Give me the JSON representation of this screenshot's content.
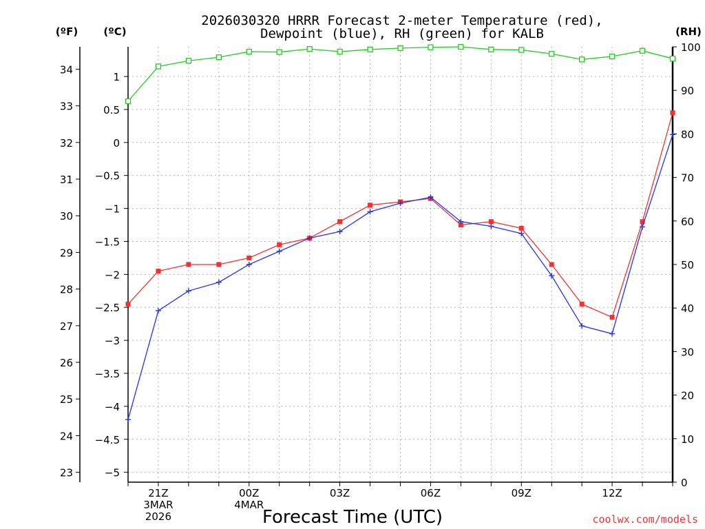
{
  "chart_data": {
    "type": "line",
    "title_lines": [
      "2026030320 HRRR Forecast 2-meter Temperature (red),",
      "Dewpoint (blue), RH (green) for KALB"
    ],
    "xlabel": "Forecast Time (UTC)",
    "credit": "coolwx.com/models",
    "units": {
      "fahrenheit": "(ºF)",
      "celsius": "(ºC)",
      "rh": "(RH)"
    },
    "x_hours": [
      0,
      1,
      2,
      3,
      4,
      5,
      6,
      7,
      8,
      9,
      10,
      11,
      12,
      13,
      14,
      15,
      16,
      17,
      18
    ],
    "x_ticks": [
      {
        "hour": 1,
        "lines": [
          "21Z",
          "3MAR",
          "2026"
        ]
      },
      {
        "hour": 4,
        "lines": [
          "00Z",
          "4MAR"
        ]
      },
      {
        "hour": 7,
        "lines": [
          "03Z"
        ]
      },
      {
        "hour": 10,
        "lines": [
          "06Z"
        ]
      },
      {
        "hour": 13,
        "lines": [
          "09Z"
        ]
      },
      {
        "hour": 16,
        "lines": [
          "12Z"
        ]
      }
    ],
    "celsius_axis": {
      "min": -5.15,
      "max": 1.45,
      "ticks": [
        -5,
        -4.5,
        -4,
        -3.5,
        -3,
        -2.5,
        -2,
        -1.5,
        -1,
        -0.5,
        0,
        0.5,
        1
      ]
    },
    "fahrenheit_axis": {
      "min": 22.73,
      "max": 34.61,
      "ticks": [
        23,
        24,
        25,
        26,
        27,
        28,
        29,
        30,
        31,
        32,
        33,
        34
      ]
    },
    "rh_axis": {
      "min": 0,
      "max": 100,
      "ticks": [
        0,
        10,
        20,
        30,
        40,
        50,
        60,
        70,
        80,
        90,
        100
      ]
    },
    "series": [
      {
        "name": "Temperature",
        "units": "C",
        "color": "#ee3333",
        "marker": "filled-square",
        "values": [
          -2.45,
          -1.95,
          -1.85,
          -1.85,
          -1.75,
          -1.55,
          -1.45,
          -1.2,
          -0.95,
          -0.9,
          -0.85,
          -1.25,
          -1.2,
          -1.3,
          -1.85,
          -2.45,
          -2.65,
          -1.2,
          0.45
        ]
      },
      {
        "name": "Dewpoint",
        "units": "C",
        "color": "#2233ee",
        "marker": "plus",
        "values": [
          -4.2,
          -2.55,
          -2.25,
          -2.12,
          -1.85,
          -1.65,
          -1.45,
          -1.35,
          -1.05,
          -0.92,
          -0.83,
          -1.2,
          -1.27,
          -1.38,
          -2.02,
          -2.78,
          -2.9,
          -1.28,
          0.12
        ]
      },
      {
        "name": "RH",
        "units": "%",
        "color": "#22cc22",
        "marker": "open-square",
        "values": [
          87.5,
          95.5,
          96.8,
          97.6,
          98.9,
          98.8,
          99.5,
          98.9,
          99.4,
          99.7,
          99.9,
          100.0,
          99.4,
          99.3,
          98.4,
          97.1,
          97.8,
          99.1,
          97.3
        ]
      }
    ]
  }
}
